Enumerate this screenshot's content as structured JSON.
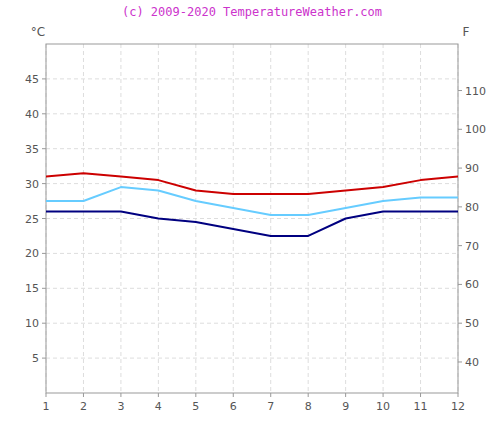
{
  "chart_data": {
    "type": "line",
    "title": "(c) 2009-2020 TemperatureWeather.com",
    "y_label": "°C",
    "y2_label": "F",
    "x": [
      1,
      2,
      3,
      4,
      5,
      6,
      7,
      8,
      9,
      10,
      11,
      12
    ],
    "xlim": [
      1,
      12
    ],
    "xticks": [
      1,
      2,
      3,
      4,
      5,
      6,
      7,
      8,
      9,
      10,
      11,
      12
    ],
    "ylim": [
      0,
      50
    ],
    "yticks": [
      5,
      10,
      15,
      20,
      25,
      30,
      35,
      40,
      45
    ],
    "y2lim": [
      32,
      122
    ],
    "y2ticks": [
      40,
      50,
      60,
      70,
      80,
      90,
      100,
      110
    ],
    "grid": true,
    "series": [
      {
        "color": "#cc0000",
        "values": [
          31.0,
          31.5,
          31.0,
          30.5,
          29.0,
          28.5,
          28.5,
          28.5,
          29.0,
          29.5,
          30.5,
          31.0
        ]
      },
      {
        "color": "#66ccff",
        "values": [
          27.5,
          27.5,
          29.5,
          29.0,
          27.5,
          26.5,
          25.5,
          25.5,
          26.5,
          27.5,
          28.0,
          28.0
        ]
      },
      {
        "color": "#000080",
        "values": [
          26.0,
          26.0,
          26.0,
          25.0,
          24.5,
          23.5,
          22.5,
          22.5,
          25.0,
          26.0,
          26.0,
          26.0
        ]
      }
    ]
  }
}
